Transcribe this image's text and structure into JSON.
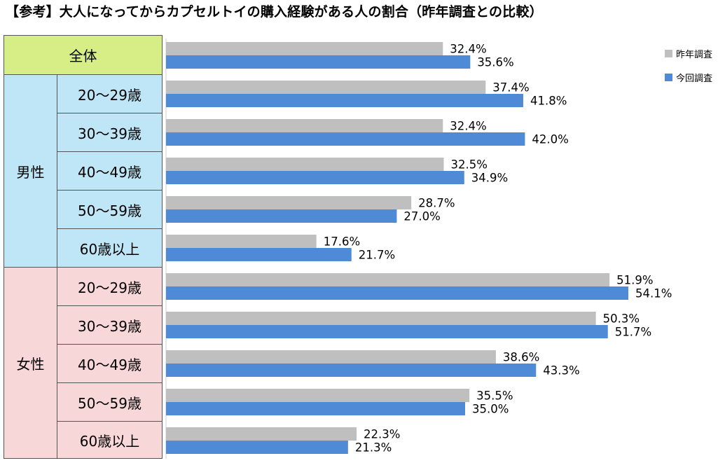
{
  "title": "【参考】大人になってからカプセルトイの購入経験がある人の割合（昨年調査との比較）",
  "table": {
    "total_label": "全体",
    "groups": [
      {
        "name": "男性",
        "rows": [
          "20～29歳",
          "30～39歳",
          "40～49歳",
          "50～59歳",
          "60歳以上"
        ]
      },
      {
        "name": "女性",
        "rows": [
          "20～29歳",
          "30～39歳",
          "40～49歳",
          "50～59歳",
          "60歳以上"
        ]
      }
    ]
  },
  "colors": {
    "total_bg": "#d7ee86",
    "male_bg": "#bfe6f6",
    "female_bg": "#f8d7d9",
    "last_year": "#bfbfbf",
    "this_year": "#4f8ad6"
  },
  "legend": [
    "昨年調査",
    "今回調査"
  ],
  "chart_data": {
    "type": "bar",
    "orientation": "horizontal",
    "categories": [
      "全体",
      "男性 20～29歳",
      "男性 30～39歳",
      "男性 40～49歳",
      "男性 50～59歳",
      "男性 60歳以上",
      "女性 20～29歳",
      "女性 30～39歳",
      "女性 40～49歳",
      "女性 50～59歳",
      "女性 60歳以上"
    ],
    "series": [
      {
        "name": "昨年調査",
        "values": [
          32.4,
          37.4,
          32.4,
          32.5,
          28.7,
          17.6,
          51.9,
          50.3,
          38.6,
          35.5,
          22.3
        ],
        "labels": [
          "32.4%",
          "37.4%",
          "32.4%",
          "32.5%",
          "28.7%",
          "17.6%",
          "51.9%",
          "50.3%",
          "38.6%",
          "35.5%",
          "22.3%"
        ]
      },
      {
        "name": "今回調査",
        "values": [
          35.6,
          41.8,
          42.0,
          34.9,
          27.0,
          21.7,
          54.1,
          51.7,
          43.3,
          35.0,
          21.3
        ],
        "labels": [
          "35.6%",
          "41.8%",
          "42.0%",
          "34.9%",
          "27.0%",
          "21.7%",
          "54.1%",
          "51.7%",
          "43.3%",
          "35.0%",
          "21.3%"
        ]
      }
    ],
    "xlim": [
      0,
      100
    ],
    "legend_position": "top-right",
    "grid": false
  }
}
